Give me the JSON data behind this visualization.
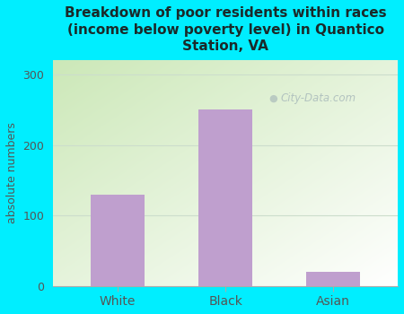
{
  "categories": [
    "White",
    "Black",
    "Asian"
  ],
  "values": [
    130,
    250,
    20
  ],
  "bar_color": "#bf9fce",
  "title": "Breakdown of poor residents within races\n(income below poverty level) in Quantico\nStation, VA",
  "ylabel": "absolute numbers",
  "ylim": [
    0,
    320
  ],
  "yticks": [
    0,
    100,
    200,
    300
  ],
  "background_color": "#00eeff",
  "plot_bg_color_tl": "#d8eccc",
  "plot_bg_color_tr": "#e8f0e8",
  "plot_bg_color_bl": "#c8e8b8",
  "plot_bg_color_br": "#ffffff",
  "title_color": "#1a2a2a",
  "axis_color": "#555555",
  "grid_color": "#ccddcc",
  "watermark": "City-Data.com",
  "watermark_color": "#aabbbb"
}
